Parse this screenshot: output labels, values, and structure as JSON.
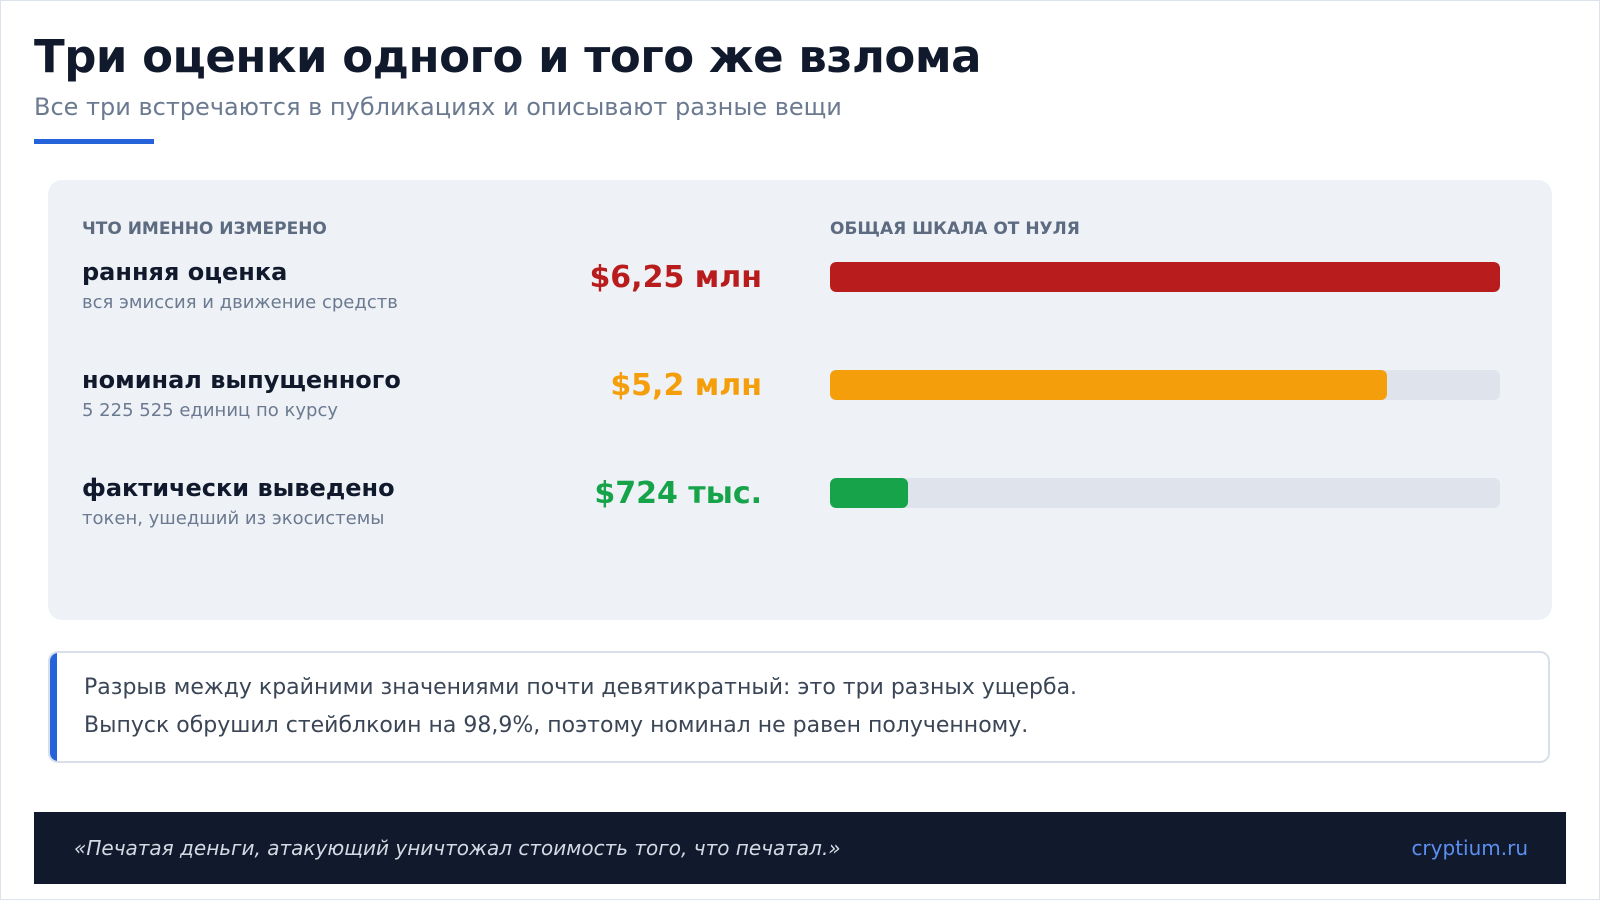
{
  "header": {
    "title": "Три оценки одного и того же взлома",
    "subtitle": "Все три встречаются в публикациях и описывают разные вещи"
  },
  "columns": {
    "measured": "ЧТО ИМЕННО ИЗМЕРЕНО",
    "scale": "ОБЩАЯ ШКАЛА ОТ НУЛЯ"
  },
  "colors": {
    "accent": "#2463d9",
    "red": "#b91c1c",
    "orange": "#f59e0b",
    "green": "#16a34a"
  },
  "chart_data": {
    "type": "bar",
    "orientation": "horizontal",
    "scale_start": 0,
    "scale_max": 6.25,
    "unit": "млн USD",
    "categories": [
      "ранняя оценка",
      "номинал выпущенного",
      "фактически выведено"
    ],
    "sublabels": [
      "вся эмиссия и движение средств",
      "5 225 525 единиц по курсу",
      "токен, ушедший из экосистемы"
    ],
    "values": [
      6.25,
      5.2,
      0.724
    ],
    "value_labels": [
      "$6,25 млн",
      "$5,2 млн",
      "$724 тыс."
    ],
    "colors": [
      "#b91c1c",
      "#f59e0b",
      "#16a34a"
    ]
  },
  "note": {
    "line1": "Разрыв между крайними значениями почти девятикратный: это три разных ущерба.",
    "line2": "Выпуск обрушил стейблкоин на 98,9%, поэтому номинал не равен полученному."
  },
  "footer": {
    "quote": "«Печатая деньги, атакующий уничтожал стоимость того, что печатал.»",
    "site": "cryptium.ru"
  }
}
